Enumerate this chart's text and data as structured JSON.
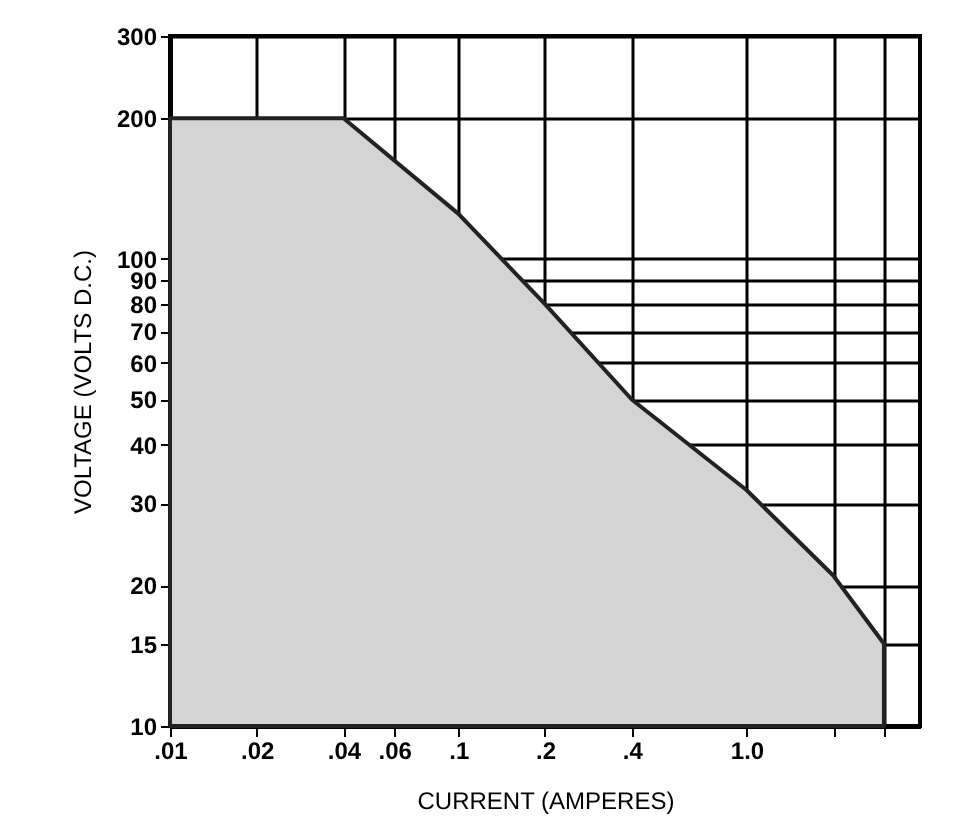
{
  "chart_data": {
    "type": "area",
    "xlabel": "CURRENT (AMPERES)",
    "ylabel": "VOLTAGE (VOLTS D.C.)",
    "x": [
      0.01,
      0.04,
      0.1,
      0.2,
      0.4,
      1.0,
      2,
      3
    ],
    "series": [
      {
        "color": "#d4d4d4",
        "values": [
          200,
          200,
          125,
          80,
          50,
          32,
          21,
          15
        ]
      }
    ],
    "log": "xy",
    "xlim": [
      0.01,
      4
    ],
    "ylim": [
      10,
      300
    ],
    "xticks": [
      {
        "value": 0.01,
        "label": ".01"
      },
      {
        "value": 0.02,
        "label": ".02"
      },
      {
        "value": 0.04,
        "label": ".04"
      },
      {
        "value": 0.06,
        "label": ".06"
      },
      {
        "value": 0.1,
        "label": ".1"
      },
      {
        "value": 0.2,
        "label": ".2"
      },
      {
        "value": 0.4,
        "label": ".4"
      },
      {
        "value": 1,
        "label": "1.0"
      },
      {
        "value": 2,
        "label": null
      },
      {
        "value": 3,
        "label": null
      }
    ],
    "yticks": [
      10,
      15,
      20,
      30,
      40,
      50,
      60,
      70,
      80,
      90,
      100,
      200,
      300
    ],
    "grid": true
  }
}
